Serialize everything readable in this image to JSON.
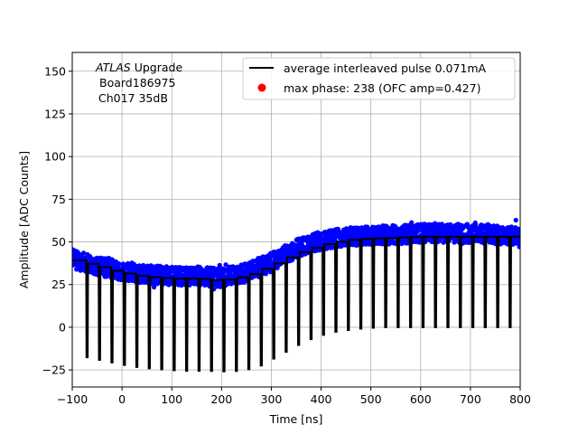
{
  "chart_data": {
    "type": "scatter",
    "title": "",
    "xlabel": "Time [ns]",
    "ylabel": "Amplitude [ADC Counts]",
    "xlim": [
      -100,
      800
    ],
    "ylim": [
      -35,
      161
    ],
    "xticks": [
      -100,
      0,
      100,
      200,
      300,
      400,
      500,
      600,
      700,
      800
    ],
    "yticks": [
      -25,
      0,
      25,
      50,
      75,
      100,
      125,
      150
    ],
    "grid": true,
    "annotation": {
      "line1_italic": "ATLAS",
      "line1_rest": " Upgrade",
      "line2": "Board186975",
      "line3": "Ch017 35dB"
    },
    "legend": {
      "placement": "upper-right",
      "entries": [
        {
          "label": "average interleaved pulse 0.071mA",
          "marker": "line",
          "color": "#000000"
        },
        {
          "label": "max phase: 238 (OFC amp=0.427)",
          "marker": "dot",
          "color": "#ff0000"
        }
      ]
    },
    "series": [
      {
        "name": "samples",
        "style": "scatter",
        "color": "#0000ff",
        "envelope_x": [
          -100,
          -50,
          0,
          50,
          100,
          150,
          200,
          250,
          300,
          350,
          400,
          450,
          500,
          550,
          600,
          650,
          700,
          750,
          800
        ],
        "envelope_center": [
          40,
          36,
          33,
          31,
          30,
          30,
          29,
          32,
          38,
          46,
          51,
          53,
          54,
          54,
          55,
          55,
          55,
          54,
          54
        ],
        "spread": 5.5
      },
      {
        "name": "average interleaved pulse 0.071mA",
        "style": "line",
        "color": "#000000",
        "pulse_period_ns": 25,
        "first_pulse_x": -90,
        "pulse_top_x": [
          -100,
          -50,
          0,
          50,
          100,
          150,
          200,
          250,
          300,
          350,
          400,
          450,
          500,
          550,
          600,
          650,
          700,
          750,
          800
        ],
        "pulse_top_y": [
          40,
          36,
          32,
          29.5,
          28.5,
          28.5,
          27.5,
          30,
          36,
          43,
          48,
          51,
          52,
          52.5,
          53,
          53,
          53,
          53,
          53
        ],
        "pulse_bottom_y": [
          -17,
          -20,
          -23,
          -24.5,
          -25.5,
          -25.5,
          -26,
          -24,
          -16,
          -8,
          -3,
          -1,
          0,
          0,
          0,
          0,
          0,
          0,
          0
        ]
      }
    ]
  }
}
